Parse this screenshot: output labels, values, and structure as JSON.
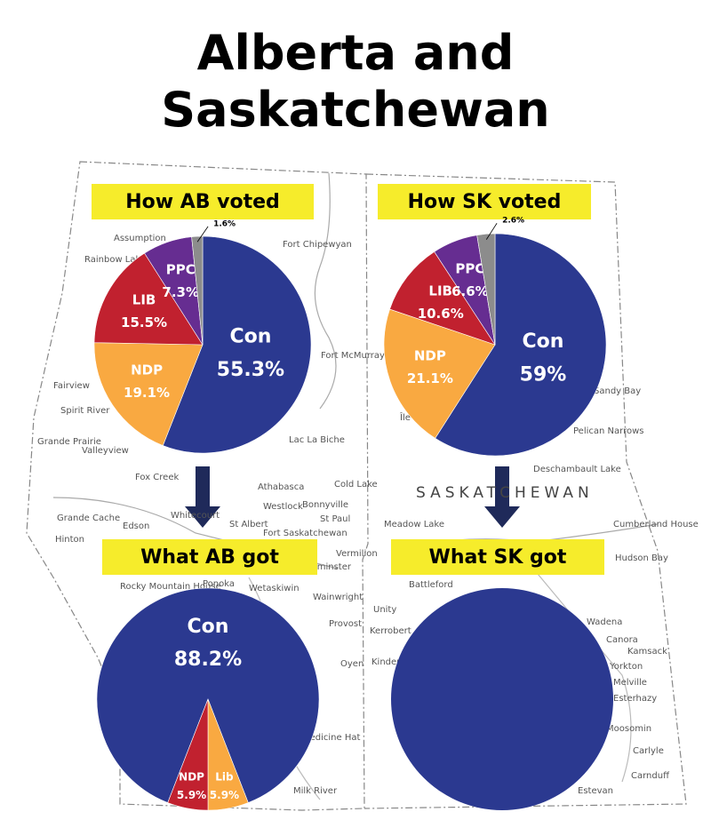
{
  "title": "Alberta and Saskatchewan",
  "map_labels": [
    "Assumption",
    "Rainbow Lake",
    "Fort Chipewyan",
    "Fort McMurray",
    "Fairview",
    "Spirit River",
    "Grande Prairie",
    "Valleyview",
    "Fox Creek",
    "Athabasca",
    "Lac La Biche",
    "Cold Lake",
    "Grande Cache",
    "Whitecourt",
    "Westlock",
    "Bonnyville",
    "St Paul",
    "St Albert",
    "Fort Saskatchewan",
    "Hinton",
    "Edson",
    "Rocky Mountain House",
    "Ponoka",
    "Wetaskiwin",
    "Wainwright",
    "Provost",
    "Oyen",
    "Medicine Hat",
    "Milk River",
    "Vermilion",
    "Lloydminster",
    "Athabasca",
    "Île-à-la-Crosse",
    "Sandy Bay",
    "Pelican Narrows",
    "SASKATCHEWAN",
    "Meadow Lake",
    "Cumberland House",
    "Hudson Bay",
    "Battleford",
    "Unity",
    "Kerrobert",
    "Kindersley",
    "Wadena",
    "Canora",
    "Kamsack",
    "Yorkton",
    "Melville",
    "Esterhazy",
    "Moosomin",
    "Carlyle",
    "Carnduff",
    "Estevan",
    "Deschambault Lake"
  ],
  "chart_data": [
    {
      "type": "pie",
      "title": "How AB voted",
      "categories": [
        "Con",
        "NDP",
        "LIB",
        "PPC",
        null
      ],
      "values": [
        55.3,
        19.1,
        15.5,
        7.3,
        1.6
      ],
      "value_labels": [
        "55.3%",
        "19.1%",
        "15.5%",
        "7.3%",
        "1.6%"
      ],
      "colors": [
        "#2b3990",
        "#f9a941",
        "#c1212f",
        "#662d91",
        "#8c8c8c"
      ]
    },
    {
      "type": "pie",
      "title": "How SK voted",
      "categories": [
        "Con",
        "NDP",
        "LIB",
        "PPC",
        null
      ],
      "values": [
        59,
        21.1,
        10.6,
        6.6,
        2.6
      ],
      "value_labels": [
        "59%",
        "21.1%",
        "10.6%",
        "6.6%",
        "2.6%"
      ],
      "colors": [
        "#2b3990",
        "#f9a941",
        "#c1212f",
        "#662d91",
        "#8c8c8c"
      ]
    },
    {
      "type": "pie",
      "title": "What AB got",
      "categories": [
        "Con",
        "Lib",
        "NDP"
      ],
      "values": [
        88.2,
        5.9,
        5.9
      ],
      "value_labels": [
        "88.2%",
        "5.9%",
        "5.9%"
      ],
      "colors": [
        "#2b3990",
        "#f9a941",
        "#c1212f"
      ]
    },
    {
      "type": "pie",
      "title": "What SK got",
      "categories": [
        null
      ],
      "values": [
        100
      ],
      "colors": [
        "#2b3990"
      ]
    }
  ]
}
